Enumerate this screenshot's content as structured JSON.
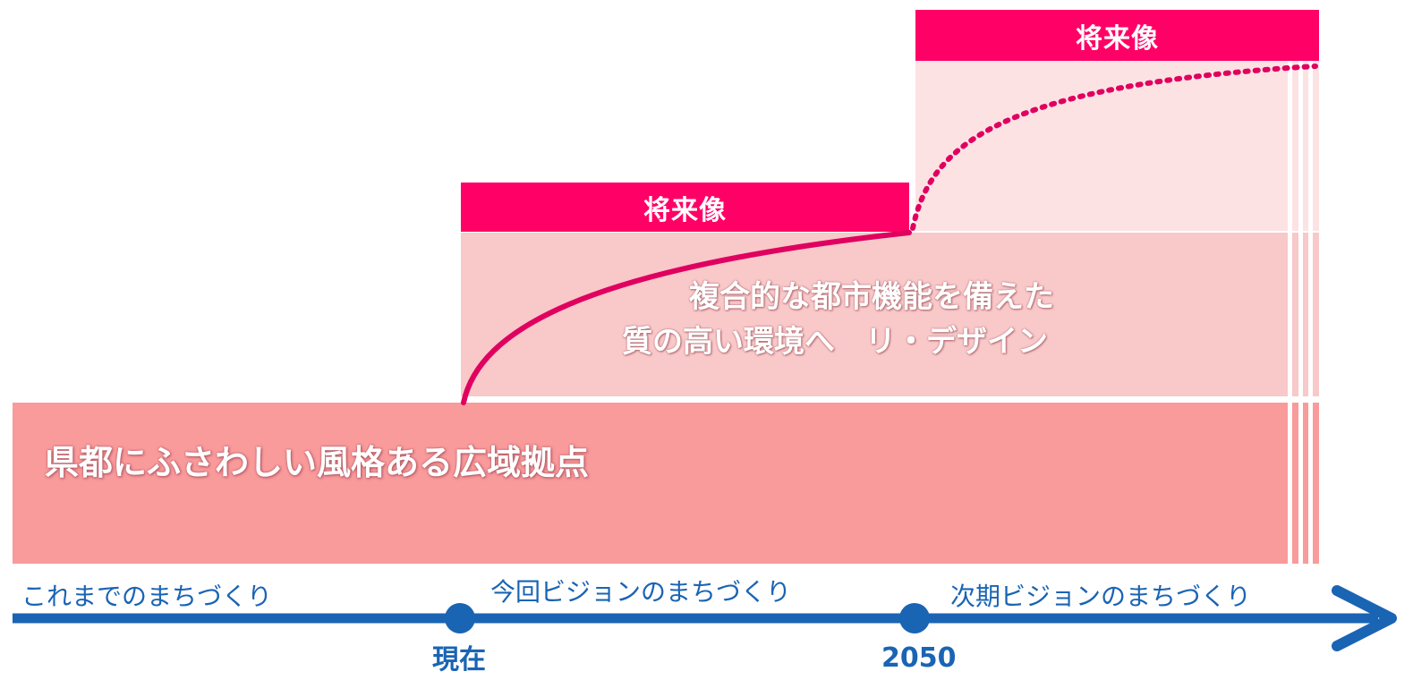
{
  "future_label_top": "将来像",
  "future_label_mid": "将来像",
  "mid_band_lines": [
    "複合的な都市機能を備えた",
    "質の高い環境へ　リ・デザイン"
  ],
  "base_band_text": "県都にふさわしい風格ある広域拠点",
  "eras": {
    "past": "これまでのまちづくり",
    "current": "今回ビジョンのまちづくり",
    "next": "次期ビジョンのまちづくり"
  },
  "milestones": {
    "now": "現在",
    "target": "2050"
  },
  "colors": {
    "accent": "#ff0066",
    "curve": "#e0005f",
    "timeline": "#1a64b4",
    "band_top": "#fde2e4",
    "band_mid": "#f9c8c9",
    "band_base": "#f99a9b"
  }
}
